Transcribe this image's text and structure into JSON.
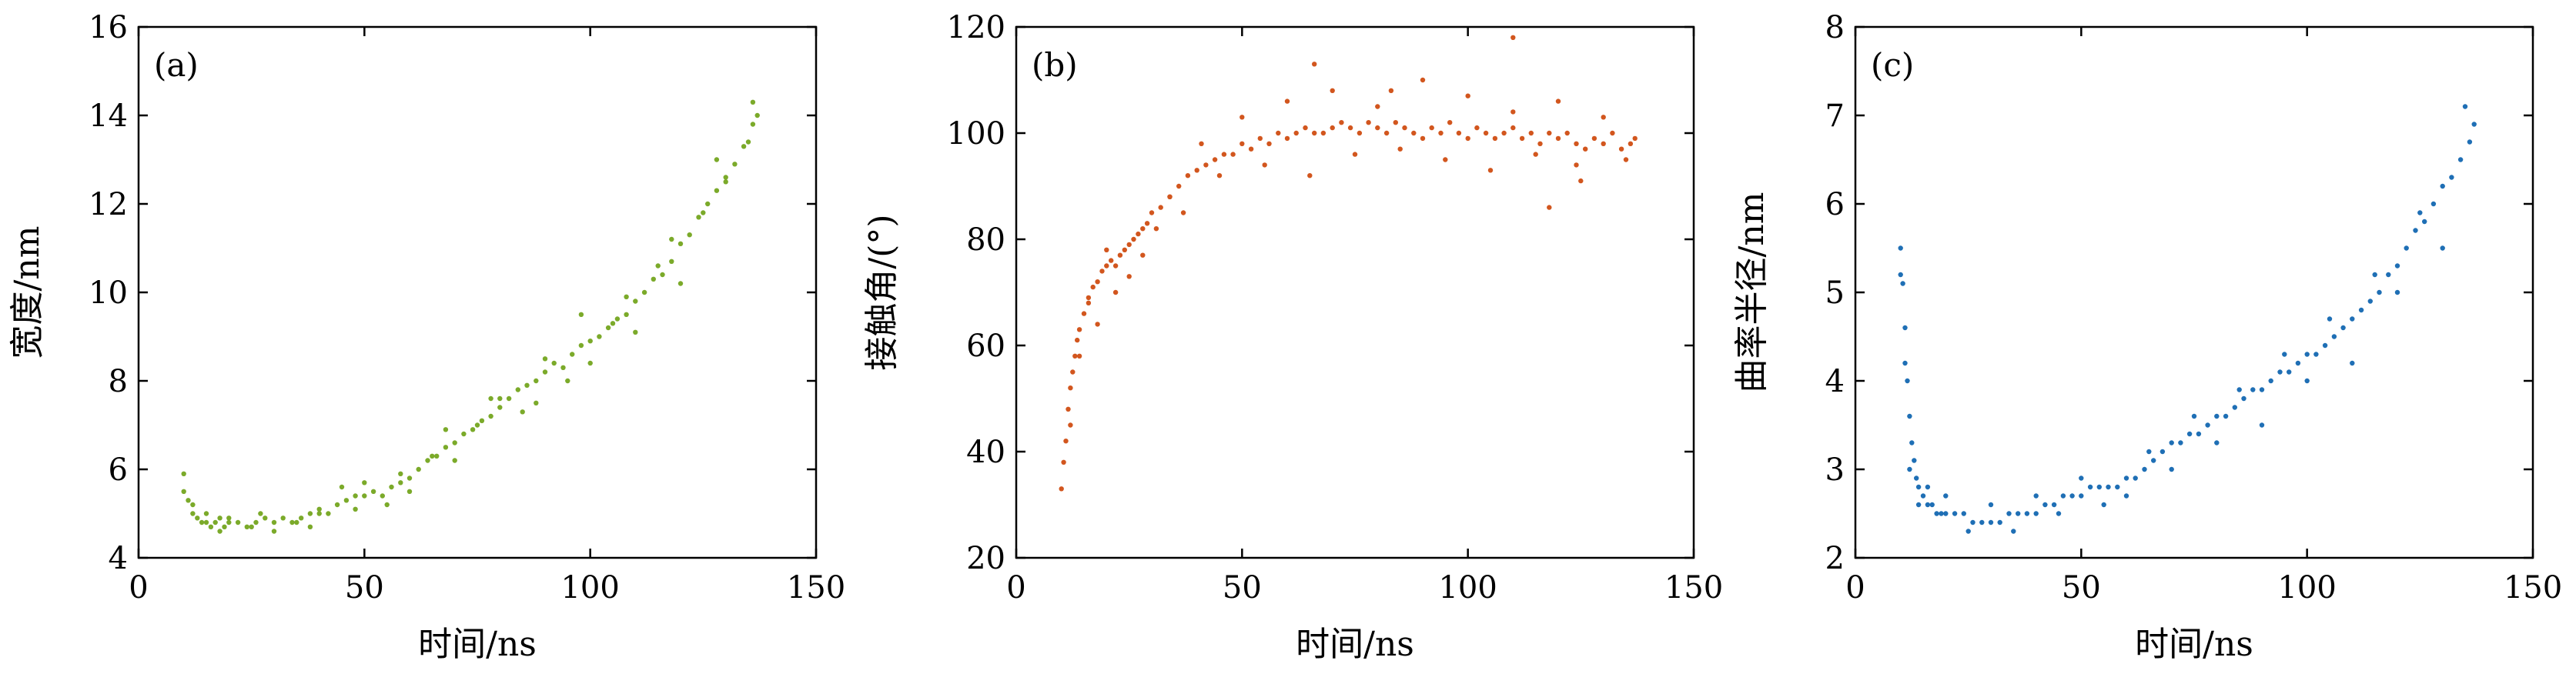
{
  "chart_data": [
    {
      "type": "scatter",
      "panel_label": "(a)",
      "xlabel": "时间/ns",
      "ylabel": "宽度/nm",
      "xlim": [
        0,
        150
      ],
      "ylim": [
        4,
        16
      ],
      "xticks": [
        0,
        50,
        100,
        150
      ],
      "yticks": [
        4,
        6,
        8,
        10,
        12,
        14,
        16
      ],
      "grid": false,
      "color": "#7BAA2A",
      "series": [
        {
          "x": [
            10,
            11,
            12,
            13,
            14,
            15,
            16,
            17,
            18,
            19,
            20,
            22,
            24,
            26,
            28,
            30,
            32,
            34,
            36,
            38,
            40,
            42,
            44,
            46,
            48,
            50,
            52,
            54,
            56,
            58,
            60,
            62,
            64,
            66,
            68,
            70,
            72,
            74,
            76,
            78,
            80,
            82,
            84,
            86,
            88,
            90,
            92,
            94,
            96,
            98,
            100,
            102,
            104,
            106,
            108,
            110,
            112,
            114,
            116,
            118,
            120,
            122,
            124,
            126,
            128,
            130,
            132,
            134,
            136,
            137,
            10,
            15,
            20,
            25,
            30,
            35,
            40,
            45,
            50,
            55,
            60,
            65,
            70,
            75,
            80,
            85,
            90,
            95,
            100,
            105,
            110,
            115,
            120,
            125,
            130,
            135,
            12,
            18,
            27,
            38,
            48,
            58,
            68,
            78,
            88,
            98,
            108,
            118,
            128,
            136
          ],
          "y": [
            5.9,
            5.3,
            5.0,
            4.9,
            4.8,
            4.8,
            4.7,
            4.8,
            4.9,
            4.7,
            4.8,
            4.8,
            4.7,
            4.8,
            4.9,
            4.8,
            4.9,
            4.8,
            4.9,
            5.0,
            5.0,
            5.0,
            5.2,
            5.3,
            5.4,
            5.4,
            5.5,
            5.4,
            5.6,
            5.7,
            5.8,
            6.0,
            6.2,
            6.3,
            6.5,
            6.6,
            6.8,
            6.9,
            7.1,
            7.2,
            7.4,
            7.6,
            7.8,
            7.9,
            8.0,
            8.2,
            8.4,
            8.3,
            8.6,
            8.8,
            8.9,
            9.0,
            9.2,
            9.4,
            9.5,
            9.8,
            10.0,
            10.3,
            10.4,
            10.7,
            11.1,
            11.3,
            11.7,
            12.0,
            12.3,
            12.6,
            12.9,
            13.3,
            13.8,
            14.0,
            5.5,
            5.0,
            4.9,
            4.7,
            4.6,
            4.8,
            5.1,
            5.6,
            5.7,
            5.2,
            5.5,
            6.3,
            6.2,
            7.0,
            7.6,
            7.3,
            8.5,
            8.0,
            8.4,
            9.3,
            9.1,
            10.6,
            10.2,
            11.8,
            12.5,
            13.4,
            5.2,
            4.6,
            5.0,
            4.7,
            5.1,
            5.9,
            6.9,
            7.6,
            7.5,
            9.5,
            9.9,
            11.2,
            13.0,
            14.3
          ]
        }
      ]
    },
    {
      "type": "scatter",
      "panel_label": "(b)",
      "xlabel": "时间/ns",
      "ylabel": "接触角/(°)",
      "xlim": [
        0,
        150
      ],
      "ylim": [
        20,
        120
      ],
      "xticks": [
        0,
        50,
        100,
        150
      ],
      "yticks": [
        20,
        40,
        60,
        80,
        100,
        120
      ],
      "grid": false,
      "color": "#D2561E",
      "series": [
        {
          "x": [
            10,
            10.5,
            11,
            11.5,
            12,
            12.5,
            13,
            13.5,
            14,
            15,
            16,
            17,
            18,
            19,
            20,
            21,
            22,
            23,
            24,
            25,
            26,
            27,
            28,
            29,
            30,
            32,
            34,
            36,
            38,
            40,
            42,
            44,
            46,
            48,
            50,
            52,
            54,
            56,
            58,
            60,
            62,
            64,
            66,
            68,
            70,
            72,
            74,
            76,
            78,
            80,
            82,
            84,
            86,
            88,
            90,
            92,
            94,
            96,
            98,
            100,
            102,
            104,
            106,
            108,
            110,
            112,
            114,
            116,
            118,
            120,
            122,
            124,
            126,
            128,
            130,
            132,
            134,
            136,
            137,
            12,
            14,
            16,
            18,
            20,
            22,
            25,
            28,
            31,
            34,
            37,
            41,
            45,
            50,
            55,
            60,
            65,
            70,
            75,
            80,
            85,
            90,
            95,
            100,
            105,
            110,
            115,
            120,
            125,
            130,
            135,
            66,
            83,
            110,
            118,
            124
          ],
          "y": [
            33,
            38,
            42,
            48,
            52,
            55,
            58,
            61,
            63,
            66,
            69,
            71,
            72,
            74,
            75,
            76,
            75,
            77,
            78,
            79,
            80,
            81,
            82,
            83,
            85,
            86,
            88,
            90,
            92,
            93,
            94,
            95,
            96,
            96,
            98,
            97,
            99,
            98,
            100,
            99,
            100,
            101,
            100,
            100,
            101,
            102,
            101,
            100,
            102,
            101,
            100,
            102,
            101,
            100,
            99,
            101,
            100,
            102,
            100,
            99,
            101,
            100,
            99,
            100,
            101,
            99,
            100,
            98,
            100,
            99,
            100,
            98,
            97,
            99,
            98,
            100,
            97,
            98,
            99,
            45,
            58,
            68,
            64,
            78,
            70,
            73,
            77,
            82,
            88,
            85,
            98,
            92,
            103,
            94,
            106,
            92,
            108,
            96,
            105,
            97,
            110,
            95,
            107,
            93,
            104,
            96,
            106,
            91,
            103,
            95,
            113,
            108,
            118,
            86,
            94
          ]
        }
      ]
    },
    {
      "type": "scatter",
      "panel_label": "(c)",
      "xlabel": "时间/ns",
      "ylabel": "曲率半径/nm",
      "xlim": [
        0,
        150
      ],
      "ylim": [
        2,
        8
      ],
      "xticks": [
        0,
        50,
        100,
        150
      ],
      "yticks": [
        2,
        3,
        4,
        5,
        6,
        7,
        8
      ],
      "grid": false,
      "color": "#1F6FB5",
      "series": [
        {
          "x": [
            10,
            10.5,
            11,
            11.5,
            12,
            12.5,
            13,
            13.5,
            14,
            15,
            16,
            17,
            18,
            19,
            20,
            22,
            24,
            26,
            28,
            30,
            32,
            34,
            36,
            38,
            40,
            42,
            44,
            46,
            48,
            50,
            52,
            54,
            56,
            58,
            60,
            62,
            64,
            66,
            68,
            70,
            72,
            74,
            76,
            78,
            80,
            82,
            84,
            86,
            88,
            90,
            92,
            94,
            96,
            98,
            100,
            102,
            104,
            106,
            108,
            110,
            112,
            114,
            116,
            118,
            120,
            122,
            124,
            126,
            128,
            130,
            132,
            134,
            136,
            137,
            10,
            11,
            12,
            14,
            16,
            20,
            25,
            30,
            35,
            40,
            45,
            50,
            55,
            60,
            65,
            70,
            75,
            80,
            85,
            90,
            95,
            100,
            105,
            110,
            115,
            120,
            125,
            130,
            135
          ],
          "y": [
            5.5,
            5.1,
            4.6,
            4.0,
            3.6,
            3.3,
            3.1,
            2.9,
            2.8,
            2.7,
            2.6,
            2.6,
            2.5,
            2.5,
            2.5,
            2.5,
            2.5,
            2.4,
            2.4,
            2.4,
            2.4,
            2.5,
            2.5,
            2.5,
            2.5,
            2.6,
            2.6,
            2.7,
            2.7,
            2.7,
            2.8,
            2.8,
            2.8,
            2.8,
            2.9,
            2.9,
            3.0,
            3.1,
            3.2,
            3.3,
            3.3,
            3.4,
            3.4,
            3.5,
            3.6,
            3.6,
            3.7,
            3.8,
            3.9,
            3.9,
            4.0,
            4.1,
            4.1,
            4.2,
            4.3,
            4.3,
            4.4,
            4.5,
            4.6,
            4.7,
            4.8,
            4.9,
            5.0,
            5.2,
            5.3,
            5.5,
            5.7,
            5.8,
            6.0,
            6.2,
            6.3,
            6.5,
            6.7,
            6.9,
            5.2,
            4.2,
            3.0,
            2.6,
            2.8,
            2.7,
            2.3,
            2.6,
            2.3,
            2.7,
            2.5,
            2.9,
            2.6,
            2.7,
            3.2,
            3.0,
            3.6,
            3.3,
            3.9,
            3.5,
            4.3,
            4.0,
            4.7,
            4.2,
            5.2,
            5.0,
            5.9,
            5.5,
            7.1
          ]
        }
      ]
    }
  ]
}
